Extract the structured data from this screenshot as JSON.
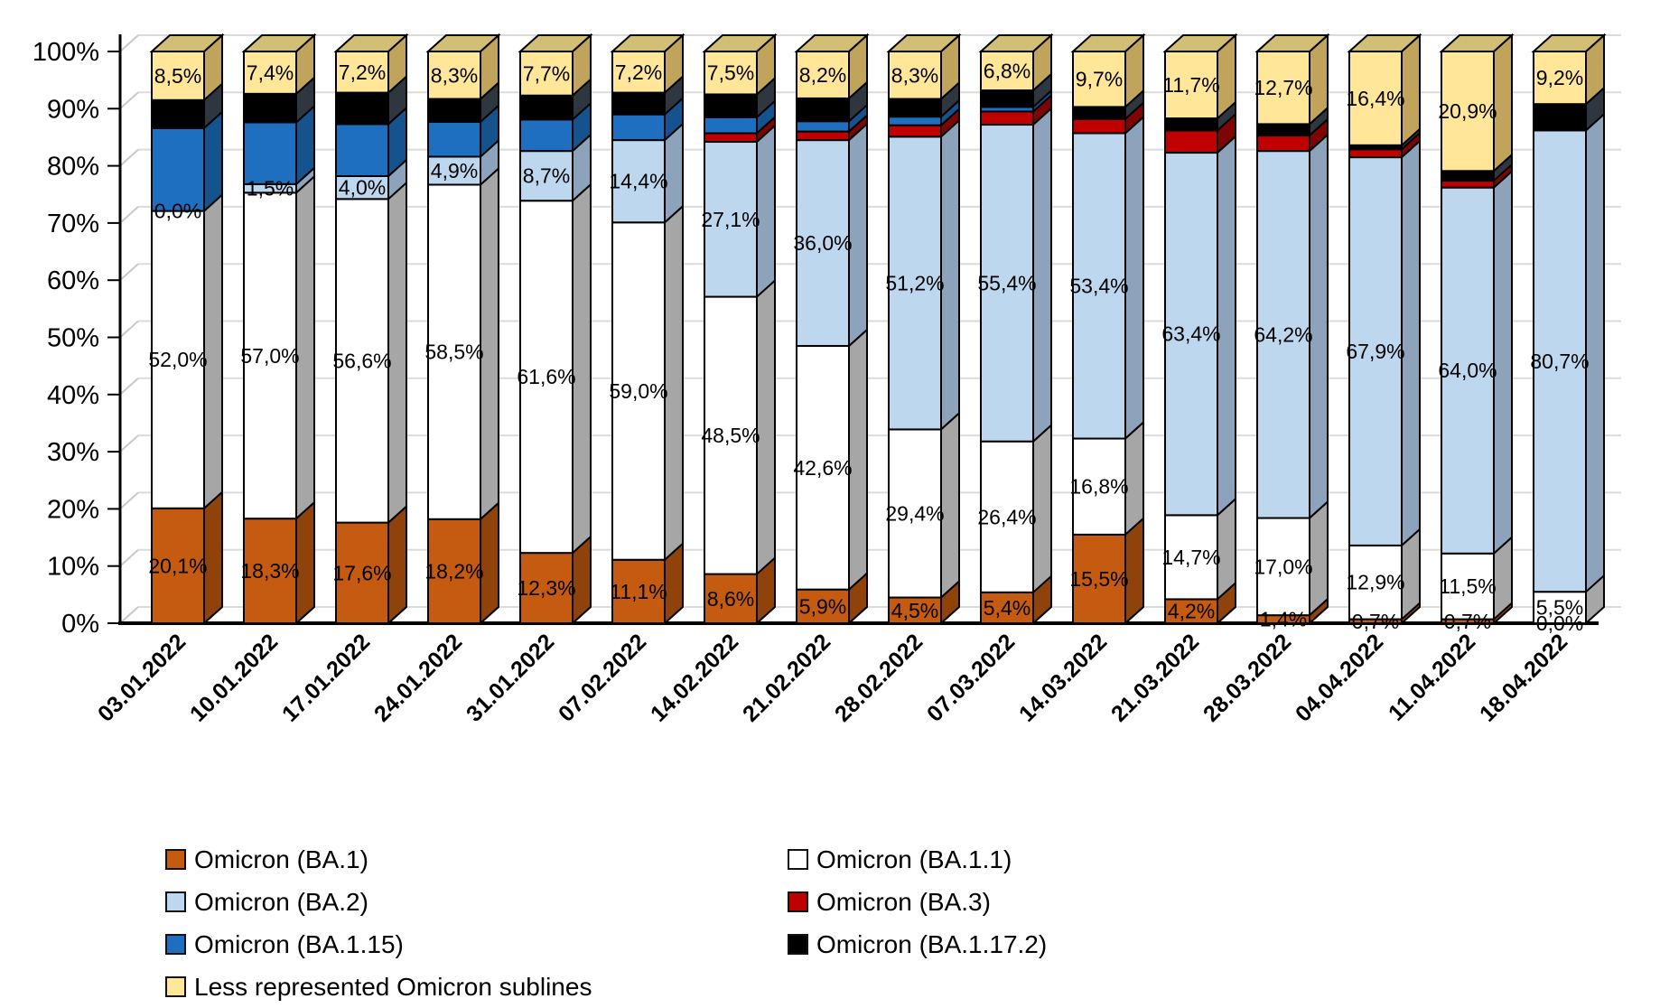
{
  "chart_data": {
    "type": "bar",
    "stacking": "percent",
    "title": "",
    "xlabel": "",
    "ylabel": "",
    "grid": true,
    "legend_position": "bottom",
    "label_decimal_separator": ",",
    "categories": [
      "03.01.2022",
      "10.01.2022",
      "17.01.2022",
      "24.01.2022",
      "31.01.2022",
      "07.02.2022",
      "14.02.2022",
      "21.02.2022",
      "28.02.2022",
      "07.03.2022",
      "14.03.2022",
      "21.03.2022",
      "28.03.2022",
      "04.04.2022",
      "11.04.2022",
      "18.04.2022"
    ],
    "series": [
      {
        "name": "Omicron (BA.1)",
        "color": "#C55A11",
        "side_color": "#8F430A",
        "show_labels": true,
        "values": [
          20.1,
          18.3,
          17.6,
          18.2,
          12.3,
          11.1,
          8.6,
          5.9,
          4.5,
          5.4,
          15.5,
          4.2,
          1.4,
          0.7,
          0.7,
          0.0
        ]
      },
      {
        "name": "Omicron (BA.1.1)",
        "color": "#FFFFFF",
        "side_color": "#A6A6A6",
        "show_labels": true,
        "values": [
          52.0,
          57.0,
          56.6,
          58.5,
          61.6,
          59.0,
          48.5,
          42.6,
          29.4,
          26.4,
          16.8,
          14.7,
          17.0,
          12.9,
          11.5,
          5.5
        ]
      },
      {
        "name": "Omicron (BA.2)",
        "color": "#BDD7EE",
        "side_color": "#8DA3BC",
        "show_labels": true,
        "values": [
          0.0,
          1.5,
          4.0,
          4.9,
          8.7,
          14.4,
          27.1,
          36.0,
          51.2,
          55.4,
          53.4,
          63.4,
          64.2,
          67.9,
          64.0,
          80.7
        ]
      },
      {
        "name": "Omicron (BA.3)",
        "color": "#C00000",
        "side_color": "#7F0404",
        "show_labels": false,
        "values": [
          0.0,
          0.0,
          0.0,
          0.0,
          0.0,
          0.0,
          1.5,
          1.5,
          2.0,
          2.3,
          2.5,
          3.9,
          2.7,
          1.4,
          1.2,
          0.0
        ]
      },
      {
        "name": "Omicron (BA.1.15)",
        "color": "#1F6FC0",
        "side_color": "#15538F",
        "show_labels": false,
        "values": [
          14.5,
          10.8,
          9.1,
          6.1,
          5.5,
          4.5,
          2.8,
          1.8,
          1.5,
          0.8,
          0.0,
          0.0,
          0.0,
          0.0,
          0.0,
          0.0
        ]
      },
      {
        "name": "Omicron (BA.1.17.2)",
        "color": "#000000",
        "side_color": "#2E3640",
        "show_labels": false,
        "values": [
          4.9,
          5.0,
          5.5,
          4.0,
          4.2,
          3.8,
          4.0,
          4.0,
          3.1,
          2.9,
          2.1,
          2.1,
          2.0,
          0.7,
          1.7,
          4.6
        ]
      },
      {
        "name": "Less represented Omicron sublines",
        "color": "#FFE699",
        "side_color": "#C0A45C",
        "top_color": "#D2BE74",
        "show_labels": true,
        "values": [
          8.5,
          7.4,
          7.2,
          8.3,
          7.7,
          7.2,
          7.5,
          8.2,
          8.3,
          6.8,
          9.7,
          11.7,
          12.7,
          16.4,
          20.9,
          9.2
        ]
      }
    ],
    "y_axis": {
      "min": 0,
      "max": 100,
      "tick_step": 10,
      "tick_labels": [
        "0%",
        "10%",
        "20%",
        "30%",
        "40%",
        "50%",
        "60%",
        "70%",
        "80%",
        "90%",
        "100%"
      ]
    },
    "legend": {
      "left_column_series": [
        0,
        2,
        4,
        6
      ],
      "right_column_series": [
        1,
        3,
        5
      ]
    }
  },
  "colors": {
    "gridline": "#DBDBDB",
    "wall_diagonal": "#C9C9C9",
    "axis": "#000000",
    "label_text": "#000000"
  }
}
